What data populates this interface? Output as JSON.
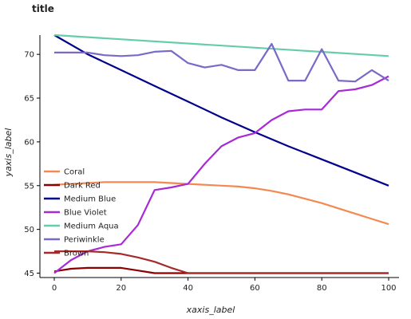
{
  "chart_data": {
    "type": "line",
    "title": "title",
    "xlabel": "xaxis_label",
    "ylabel": "yaxis_label",
    "xlim": [
      0,
      100
    ],
    "ylim": [
      44.5,
      72.2
    ],
    "x_ticks": [
      0,
      20,
      40,
      60,
      80,
      100
    ],
    "y_ticks": [
      45,
      50,
      55,
      60,
      65,
      70
    ],
    "grid": false,
    "legend_position": "left, inside",
    "series": [
      {
        "name": "Coral",
        "color": "#f4894f",
        "x": [
          0,
          5,
          10,
          15,
          20,
          25,
          30,
          35,
          40,
          45,
          50,
          55,
          60,
          65,
          70,
          75,
          80,
          85,
          90,
          95,
          100
        ],
        "y": [
          55.1,
          55.2,
          55.3,
          55.4,
          55.4,
          55.4,
          55.4,
          55.3,
          55.2,
          55.1,
          55.0,
          54.9,
          54.7,
          54.4,
          54.0,
          53.5,
          53.0,
          52.4,
          51.8,
          51.2,
          50.6
        ]
      },
      {
        "name": "Dark Red",
        "color": "#8b0000",
        "x": [
          0,
          5,
          10,
          15,
          20,
          25,
          30,
          35,
          40,
          45,
          50,
          55,
          60,
          65,
          70,
          75,
          80,
          85,
          90,
          95,
          100
        ],
        "y": [
          45.2,
          45.5,
          45.6,
          45.6,
          45.6,
          45.3,
          45.0,
          45.0,
          45.0,
          45.0,
          45.0,
          45.0,
          45.0,
          45.0,
          45.0,
          45.0,
          45.0,
          45.0,
          45.0,
          45.0,
          45.0
        ]
      },
      {
        "name": "Medium Blue",
        "color": "#00008b",
        "x": [
          0,
          10,
          20,
          30,
          40,
          50,
          60,
          70,
          80,
          90,
          100
        ],
        "y": [
          72.2,
          70.0,
          68.2,
          66.4,
          64.6,
          62.8,
          61.1,
          59.5,
          58.0,
          56.5,
          55.0
        ]
      },
      {
        "name": "Blue Violet",
        "color": "#a72ad6",
        "x": [
          0,
          5,
          10,
          15,
          20,
          25,
          30,
          35,
          40,
          45,
          50,
          55,
          60,
          65,
          70,
          75,
          80,
          85,
          90,
          95,
          100
        ],
        "y": [
          45.0,
          46.5,
          47.5,
          48.0,
          48.3,
          50.5,
          54.5,
          54.8,
          55.2,
          57.5,
          59.5,
          60.5,
          61.0,
          62.5,
          63.5,
          63.7,
          63.7,
          65.8,
          66.0,
          66.5,
          67.5
        ]
      },
      {
        "name": "Medium Aqua",
        "color": "#66cdaa",
        "x": [
          0,
          100
        ],
        "y": [
          72.2,
          69.8
        ]
      },
      {
        "name": "Periwinkle",
        "color": "#7b68c8",
        "x": [
          0,
          5,
          10,
          15,
          20,
          25,
          30,
          35,
          40,
          45,
          50,
          55,
          60,
          65,
          70,
          75,
          80,
          85,
          90,
          95,
          100
        ],
        "y": [
          70.2,
          70.2,
          70.2,
          69.9,
          69.8,
          69.9,
          70.3,
          70.4,
          69.0,
          68.5,
          68.8,
          68.2,
          68.2,
          71.2,
          67.0,
          67.0,
          70.6,
          67.0,
          66.9,
          68.2,
          67.0
        ]
      },
      {
        "name": "Brown",
        "color": "#a52a2a",
        "x": [
          0,
          5,
          10,
          15,
          20,
          25,
          30,
          35,
          40,
          45,
          50,
          55,
          60,
          65,
          70,
          75,
          80,
          85,
          90,
          95,
          100
        ],
        "y": [
          47.5,
          47.5,
          47.5,
          47.4,
          47.2,
          46.8,
          46.3,
          45.6,
          45.0,
          45.0,
          45.0,
          45.0,
          45.0,
          45.0,
          45.0,
          45.0,
          45.0,
          45.0,
          45.0,
          45.0,
          45.0
        ]
      }
    ]
  }
}
